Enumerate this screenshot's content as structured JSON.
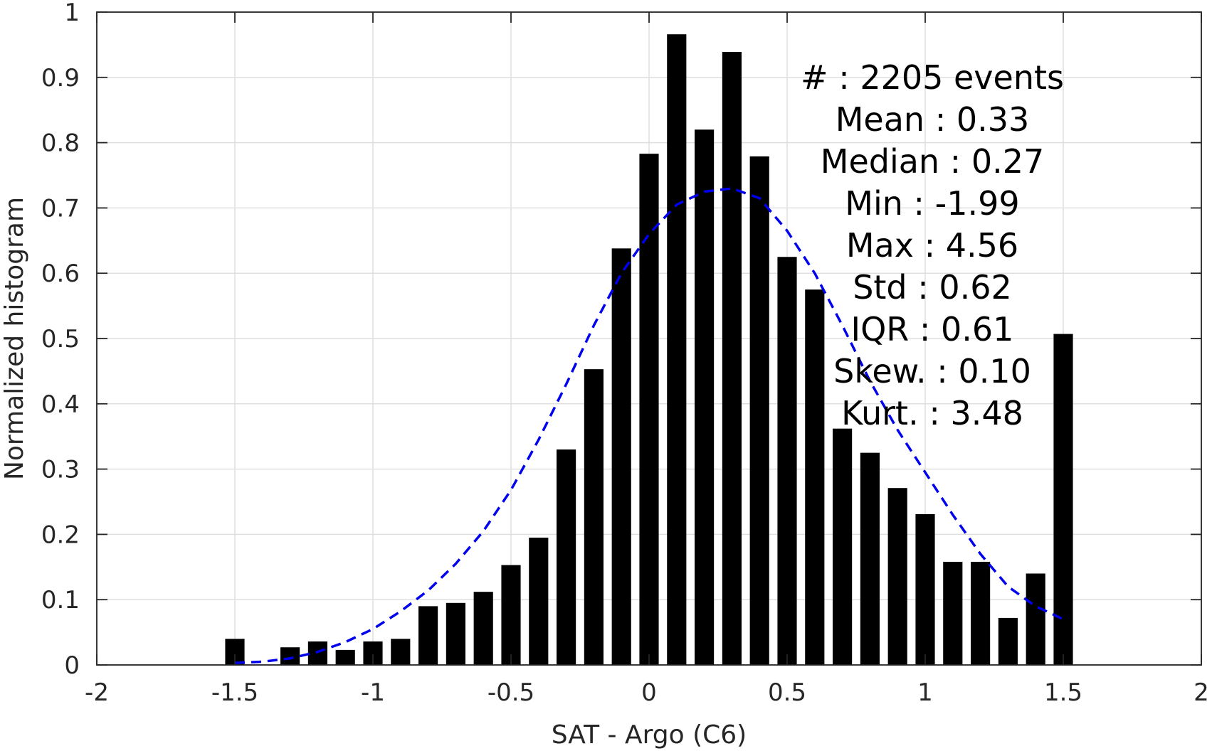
{
  "chart_data": {
    "type": "bar",
    "xlabel": "SAT - Argo (C6)",
    "ylabel": "Normalized histogram",
    "xlim": [
      -2,
      2
    ],
    "ylim": [
      0,
      1
    ],
    "xticks": [
      "-2",
      "-1.5",
      "-1",
      "-0.5",
      "0",
      "0.5",
      "1",
      "1.5",
      "2"
    ],
    "yticks": [
      "0",
      "0.1",
      "0.2",
      "0.3",
      "0.4",
      "0.5",
      "0.6",
      "0.7",
      "0.8",
      "0.9",
      "1"
    ],
    "grid": true,
    "bar_color": "#000000",
    "bars": {
      "x": [
        -1.5,
        -1.3,
        -1.2,
        -1.1,
        -1.0,
        -0.9,
        -0.8,
        -0.7,
        -0.6,
        -0.5,
        -0.4,
        -0.3,
        -0.2,
        -0.1,
        0.0,
        0.1,
        0.2,
        0.3,
        0.4,
        0.5,
        0.6,
        0.7,
        0.8,
        0.9,
        1.0,
        1.1,
        1.2,
        1.3,
        1.4,
        1.5
      ],
      "values": [
        0.04,
        0.027,
        0.036,
        0.023,
        0.036,
        0.04,
        0.09,
        0.095,
        0.112,
        0.153,
        0.195,
        0.33,
        0.453,
        0.638,
        0.783,
        0.966,
        0.82,
        0.939,
        0.779,
        0.625,
        0.575,
        0.362,
        0.325,
        0.271,
        0.231,
        0.158,
        0.158,
        0.072,
        0.14,
        0.507
      ],
      "width": 0.07
    },
    "fit_line": {
      "style": "dashed",
      "color": "#0000ee",
      "x": [
        -1.5,
        -1.4,
        -1.3,
        -1.2,
        -1.1,
        -1.0,
        -0.9,
        -0.8,
        -0.7,
        -0.6,
        -0.5,
        -0.4,
        -0.3,
        -0.2,
        -0.1,
        0.0,
        0.1,
        0.2,
        0.3,
        0.4,
        0.5,
        0.6,
        0.7,
        0.8,
        0.9,
        1.0,
        1.1,
        1.2,
        1.3,
        1.4,
        1.5
      ],
      "y": [
        0.003,
        0.005,
        0.01,
        0.02,
        0.035,
        0.055,
        0.082,
        0.114,
        0.155,
        0.205,
        0.268,
        0.345,
        0.43,
        0.52,
        0.6,
        0.66,
        0.705,
        0.725,
        0.73,
        0.715,
        0.665,
        0.6,
        0.52,
        0.435,
        0.36,
        0.295,
        0.23,
        0.17,
        0.12,
        0.09,
        0.07
      ]
    },
    "stats": [
      {
        "label": "#  ",
        "value": "2205 events"
      },
      {
        "label": "Mean",
        "value": "0.33"
      },
      {
        "label": "Median",
        "value": "0.27"
      },
      {
        "label": "Min",
        "value": "-1.99"
      },
      {
        "label": "Max",
        "value": "4.56"
      },
      {
        "label": "Std",
        "value": "0.62"
      },
      {
        "label": "IQR",
        "value": "0.61"
      },
      {
        "label": "Skew.",
        "value": "0.10"
      },
      {
        "label": "Kurt.",
        "value": "3.48"
      }
    ]
  }
}
